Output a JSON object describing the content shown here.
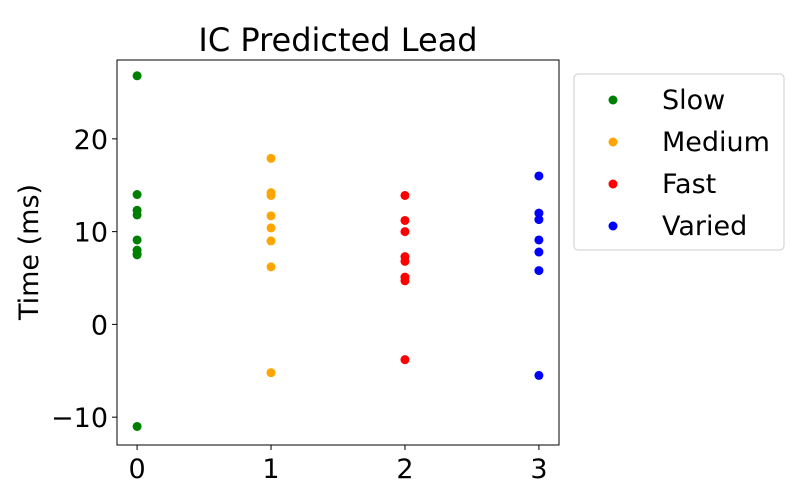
{
  "chart_data": {
    "type": "scatter",
    "title": "IC Predicted Lead",
    "xlabel": "",
    "ylabel": "Time (ms)",
    "xlim": [
      -0.15,
      3.15
    ],
    "ylim": [
      -13,
      28.5
    ],
    "xticks": [
      0,
      1,
      2,
      3
    ],
    "yticks": [
      -10,
      0,
      10,
      20
    ],
    "ytick_labels": [
      "−10",
      "0",
      "10",
      "20"
    ],
    "grid": false,
    "legend": {
      "placement": "outside-right"
    },
    "series": [
      {
        "name": "Slow",
        "color": "#008000",
        "x": [
          0,
          0,
          0,
          0,
          0,
          0,
          0,
          0,
          0
        ],
        "y": [
          26.8,
          14.0,
          12.3,
          11.8,
          9.1,
          8.0,
          7.6,
          7.5,
          -11.0
        ]
      },
      {
        "name": "Medium",
        "color": "#ffa500",
        "x": [
          1,
          1,
          1,
          1,
          1,
          1,
          1,
          1
        ],
        "y": [
          17.9,
          14.2,
          13.9,
          11.7,
          10.4,
          9.0,
          6.2,
          -5.2
        ]
      },
      {
        "name": "Fast",
        "color": "#ff0000",
        "x": [
          2,
          2,
          2,
          2,
          2,
          2,
          2,
          2
        ],
        "y": [
          13.9,
          11.2,
          10.0,
          7.3,
          6.8,
          5.1,
          4.7,
          -3.8
        ]
      },
      {
        "name": "Varied",
        "color": "#0000ff",
        "x": [
          3,
          3,
          3,
          3,
          3,
          3,
          3
        ],
        "y": [
          16.0,
          12.0,
          11.3,
          9.1,
          7.8,
          5.8,
          -5.5
        ]
      }
    ]
  }
}
